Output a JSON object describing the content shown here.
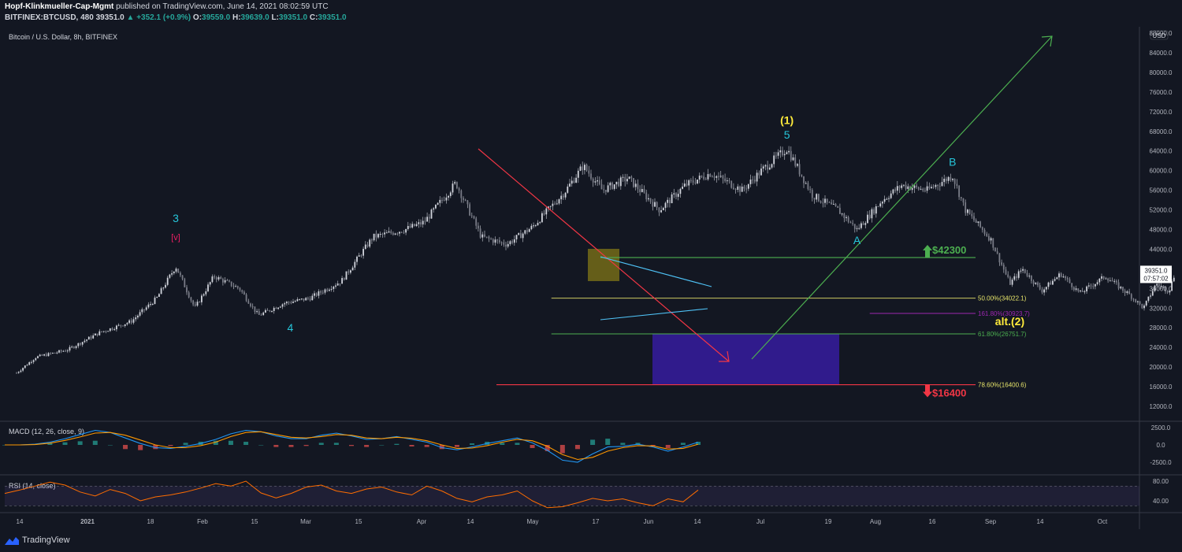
{
  "header": {
    "publisher": "Hopf-Klinkmueller-Cap-Mgmt",
    "published_text": "published on TradingView.com, June 14, 2021 08:02:59 UTC",
    "symbol": "BITFINEX:BTCUSD, 480",
    "last": "39351.0",
    "change": "▲ +352.1 (+0.9%)",
    "o_label": "O:",
    "o": "39559.0",
    "h_label": "H:",
    "h": "39639.0",
    "l_label": "L:",
    "l": "39351.0",
    "c_label": "C:",
    "c": "39351.0"
  },
  "brand": {
    "name": "TradingView",
    "logo_icon": "tradingview-logo-icon"
  },
  "chart_data": [
    {
      "type": "candlestick",
      "title": "Bitcoin / U.S. Dollar, 8h, BITFINEX",
      "currency": "USD",
      "y_ticks": [
        12000,
        16000,
        20000,
        24000,
        28000,
        32000,
        36000,
        40000,
        44000,
        48000,
        52000,
        56000,
        60000,
        64000,
        68000,
        72000,
        76000,
        80000,
        84000,
        88000
      ],
      "x_ticks": [
        "14",
        "2021",
        "18",
        "Feb",
        "15",
        "Mar",
        "15",
        "Apr",
        "14",
        "May",
        "17",
        "Jun",
        "14",
        "Jul",
        "19",
        "Aug",
        "16",
        "Sep",
        "14",
        "Oct"
      ],
      "last_price": "39351.0",
      "countdown": "07:57:02",
      "price_path": [
        [
          "2020-12-14",
          18800
        ],
        [
          "2020-12-17",
          22000
        ],
        [
          "2020-12-22",
          23500
        ],
        [
          "2020-12-27",
          27000
        ],
        [
          "2021-01-01",
          29300
        ],
        [
          "2021-01-05",
          34000
        ],
        [
          "2021-01-08",
          40500
        ],
        [
          "2021-01-11",
          32000
        ],
        [
          "2021-01-14",
          38500
        ],
        [
          "2021-01-18",
          36000
        ],
        [
          "2021-01-21",
          30500
        ],
        [
          "2021-01-25",
          33000
        ],
        [
          "2021-01-29",
          34000
        ],
        [
          "2021-02-03",
          37500
        ],
        [
          "2021-02-08",
          46500
        ],
        [
          "2021-02-13",
          48000
        ],
        [
          "2021-02-16",
          49500
        ],
        [
          "2021-02-21",
          57500
        ],
        [
          "2021-02-25",
          46500
        ],
        [
          "2021-03-01",
          45000
        ],
        [
          "2021-03-05",
          48500
        ],
        [
          "2021-03-10",
          55500
        ],
        [
          "2021-03-13",
          61000
        ],
        [
          "2021-03-16",
          56000
        ],
        [
          "2021-03-20",
          58500
        ],
        [
          "2021-03-25",
          52000
        ],
        [
          "2021-03-29",
          57000
        ],
        [
          "2021-04-02",
          59500
        ],
        [
          "2021-04-07",
          56000
        ],
        [
          "2021-04-10",
          60000
        ],
        [
          "2021-04-14",
          64500
        ],
        [
          "2021-04-18",
          55000
        ],
        [
          "2021-04-22",
          52000
        ],
        [
          "2021-04-25",
          48000
        ],
        [
          "2021-04-29",
          54000
        ],
        [
          "2021-05-02",
          57000
        ],
        [
          "2021-05-06",
          56000
        ],
        [
          "2021-05-10",
          59000
        ],
        [
          "2021-05-12",
          52000
        ],
        [
          "2021-05-16",
          46000
        ],
        [
          "2021-05-19",
          37000
        ],
        [
          "2021-05-21",
          40000
        ],
        [
          "2021-05-24",
          35500
        ],
        [
          "2021-05-27",
          39000
        ],
        [
          "2021-05-30",
          35000
        ],
        [
          "2021-06-03",
          38500
        ],
        [
          "2021-06-07",
          34500
        ],
        [
          "2021-06-09",
          32000
        ],
        [
          "2021-06-11",
          37000
        ],
        [
          "2021-06-13",
          35500
        ],
        [
          "2021-06-14",
          39351
        ]
      ],
      "wave_labels": [
        {
          "text": "3",
          "date": "2021-01-08",
          "price": 49500,
          "color": "#26c6da"
        },
        {
          "text": "[v]",
          "date": "2021-01-08",
          "price": 45800,
          "color": "#e91e63"
        },
        {
          "text": "4",
          "date": "2021-01-26",
          "price": 27200,
          "color": "#26c6da"
        },
        {
          "text": "(1)",
          "date": "2021-04-14",
          "price": 69500,
          "color": "#ffeb3b"
        },
        {
          "text": "5",
          "date": "2021-04-14",
          "price": 66500,
          "color": "#26c6da"
        },
        {
          "text": "A",
          "date": "2021-04-25",
          "price": 45000,
          "color": "#26c6da"
        },
        {
          "text": "B",
          "date": "2021-05-10",
          "price": 61000,
          "color": "#26c6da"
        },
        {
          "text": "alt.(2)",
          "date": "2021-05-19",
          "price": 28500,
          "color": "#ffeb3b"
        },
        {
          "text": "C",
          "date": "2021-06-22",
          "price": 22500,
          "color": "#26c6da"
        },
        {
          "text": "(2)",
          "date": "2021-06-22",
          "price": 19800,
          "color": "#ffeb3b"
        }
      ],
      "fib_levels": [
        {
          "label": "50.00%(34022.1)",
          "price": 34022.1,
          "color": "#e6e46a",
          "from": "2021-03-08",
          "to": "2021-07-20"
        },
        {
          "label": "161.80%(30923.7)",
          "price": 30923.7,
          "color": "#9c27b0",
          "from": "2021-04-27",
          "to": "2021-07-20"
        },
        {
          "label": "61.80%(26751.7)",
          "price": 26751.7,
          "color": "#4caf50",
          "from": "2021-03-08",
          "to": "2021-07-20"
        },
        {
          "label": "78.60%(16400.6)",
          "price": 16400.6,
          "color": "#e6e46a",
          "from": "2021-03-08",
          "to": "2021-07-20"
        }
      ],
      "targets": [
        {
          "label": "$42300",
          "price": 42300,
          "color": "#4caf50",
          "direction": "up"
        },
        {
          "label": "$16400",
          "price": 16400,
          "color": "#f23645",
          "direction": "down"
        }
      ],
      "colors": {
        "candles": "#b2b5be",
        "red_arrow": "#f23645",
        "green_arrow": "#4caf50",
        "triangle": "#4fc3f7",
        "target_box": "#311b92",
        "highlight_box": "#827717"
      }
    },
    {
      "type": "line",
      "title": "MACD (12, 26, close, 9)",
      "y_ticks": [
        "2500.0",
        "0.0",
        "-2500.0"
      ],
      "series": [
        {
          "color": "#2196f3",
          "values": [
            0,
            0,
            100,
            400,
            900,
            1500,
            2100,
            1800,
            1000,
            200,
            -400,
            -500,
            -200,
            200,
            800,
            1600,
            2100,
            1900,
            1300,
            900,
            900,
            1400,
            1700,
            1300,
            800,
            900,
            1200,
            800,
            400,
            -400,
            -700,
            -300,
            200,
            600,
            1000,
            300,
            -800,
            -2200,
            -2500,
            -1300,
            -300,
            -200,
            100,
            -300,
            -900,
            -300,
            400
          ]
        },
        {
          "color": "#ff9800",
          "values": [
            0,
            0,
            50,
            250,
            650,
            1150,
            1700,
            1800,
            1400,
            700,
            0,
            -400,
            -400,
            -100,
            400,
            1200,
            1800,
            1900,
            1500,
            1100,
            1000,
            1200,
            1500,
            1400,
            1000,
            900,
            1100,
            950,
            600,
            0,
            -500,
            -450,
            -100,
            400,
            800,
            600,
            -200,
            -1400,
            -2100,
            -1800,
            -900,
            -400,
            -100,
            -150,
            -600,
            -500,
            100
          ]
        }
      ]
    },
    {
      "type": "line",
      "title": "RSI (14, close)",
      "y_ticks": [
        "80.00",
        "40.00"
      ],
      "bands": [
        70,
        30
      ],
      "series": [
        {
          "color": "#ff6d00",
          "values": [
            55,
            62,
            70,
            78,
            72,
            58,
            50,
            63,
            55,
            40,
            48,
            52,
            58,
            66,
            75,
            70,
            80,
            56,
            46,
            55,
            68,
            72,
            60,
            55,
            64,
            68,
            58,
            52,
            70,
            60,
            45,
            38,
            48,
            52,
            60,
            40,
            26,
            28,
            36,
            45,
            40,
            44,
            36,
            30,
            44,
            38,
            62
          ]
        }
      ]
    }
  ]
}
